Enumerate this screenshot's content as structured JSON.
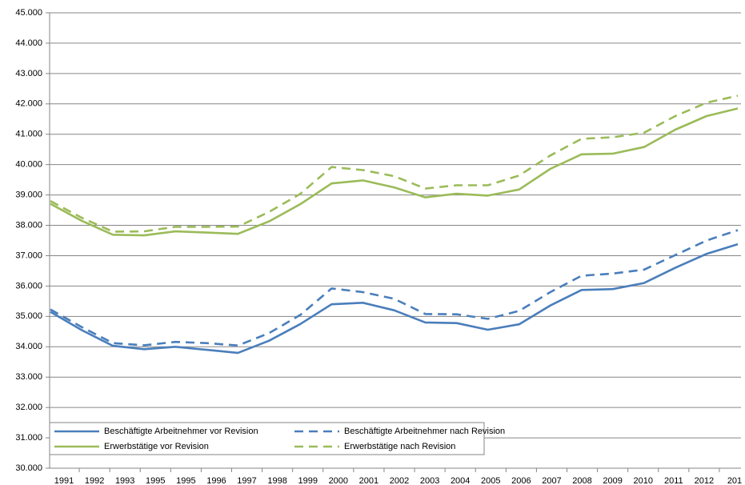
{
  "chart_data": {
    "type": "line",
    "categories": [
      "1991",
      "1992",
      "1993",
      "1995",
      "1995",
      "1996",
      "1997",
      "1998",
      "1999",
      "2000",
      "2001",
      "2002",
      "2003",
      "2004",
      "2005",
      "2006",
      "2007",
      "2008",
      "2009",
      "2010",
      "2011",
      "2012",
      "201"
    ],
    "ylim": [
      30000,
      45000
    ],
    "yticks": [
      {
        "value": 30000,
        "label": "30.000"
      },
      {
        "value": 31000,
        "label": "31.000"
      },
      {
        "value": 32000,
        "label": "32.000"
      },
      {
        "value": 33000,
        "label": "33.000"
      },
      {
        "value": 34000,
        "label": "34.000"
      },
      {
        "value": 35000,
        "label": "35.000"
      },
      {
        "value": 36000,
        "label": "36.000"
      },
      {
        "value": 37000,
        "label": "37.000"
      },
      {
        "value": 38000,
        "label": "38.000"
      },
      {
        "value": 39000,
        "label": "39.000"
      },
      {
        "value": 40000,
        "label": "40.000"
      },
      {
        "value": 41000,
        "label": "41.000"
      },
      {
        "value": 42000,
        "label": "42.000"
      },
      {
        "value": 43000,
        "label": "43.000"
      },
      {
        "value": 44000,
        "label": "44.000"
      },
      {
        "value": 45000,
        "label": "45.000"
      }
    ],
    "grid": true,
    "legend": "bottom-left",
    "series": [
      {
        "name": "Beschäftigte Arbeitnehmer vor Revision",
        "color": "#4a7ebb",
        "dash": false,
        "values": [
          35150,
          34550,
          34030,
          33920,
          34000,
          33900,
          33800,
          34200,
          34750,
          35400,
          35450,
          35200,
          34800,
          34780,
          34560,
          34740,
          35360,
          35870,
          35900,
          36100,
          36600,
          37060,
          37380
        ]
      },
      {
        "name": "Beschäftigte Arbeitnehmer nach Revision",
        "color": "#4a7ebb",
        "dash": true,
        "values": [
          35230,
          34650,
          34120,
          34050,
          34160,
          34120,
          34040,
          34450,
          35050,
          35920,
          35800,
          35580,
          35080,
          35070,
          34920,
          35180,
          35800,
          36340,
          36410,
          36540,
          37020,
          37500,
          37840
        ]
      },
      {
        "name": "Erwerbstätige vor Revision",
        "color": "#9bbb59",
        "dash": false,
        "values": [
          38710,
          38150,
          37690,
          37670,
          37800,
          37760,
          37720,
          38130,
          38700,
          39380,
          39480,
          39250,
          38920,
          39040,
          38980,
          39180,
          39860,
          40340,
          40360,
          40580,
          41150,
          41600,
          41850
        ]
      },
      {
        "name": "Erwerbstätige nach Revision",
        "color": "#9bbb59",
        "dash": true,
        "values": [
          38800,
          38250,
          37790,
          37800,
          37950,
          37950,
          37960,
          38440,
          39040,
          39920,
          39820,
          39620,
          39210,
          39320,
          39320,
          39640,
          40300,
          40850,
          40900,
          41050,
          41600,
          42040,
          42270
        ]
      }
    ]
  }
}
